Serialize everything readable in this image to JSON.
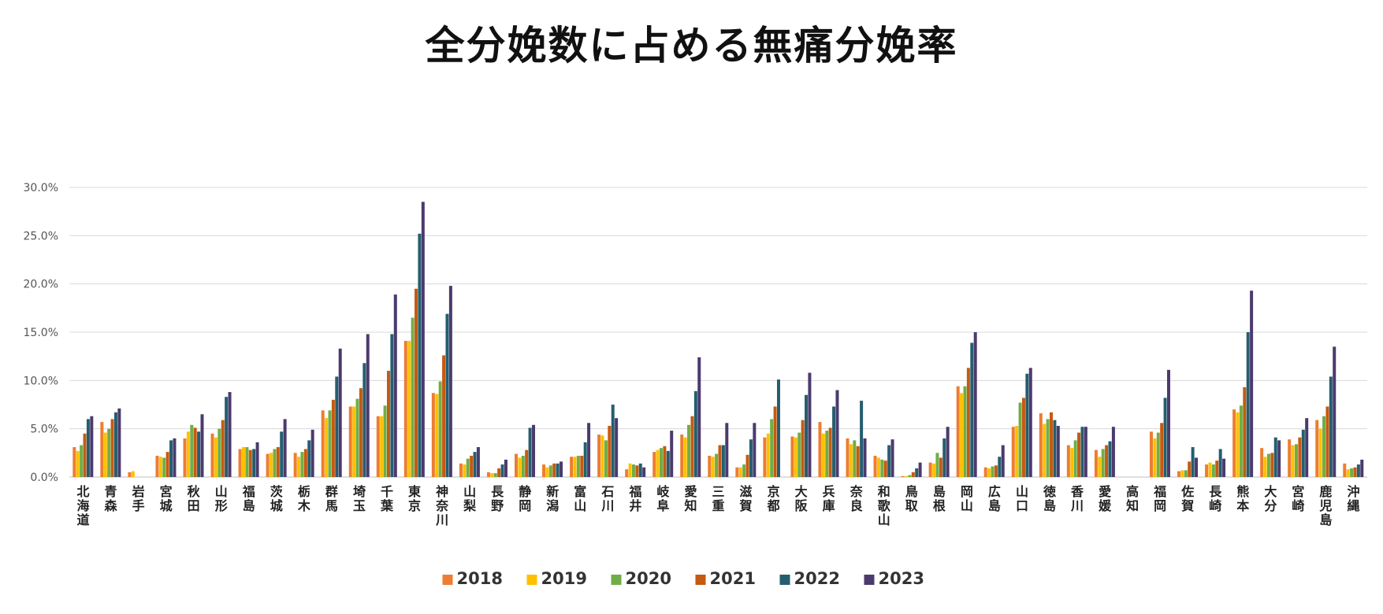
{
  "chart_data": {
    "type": "bar",
    "title": "全分娩数に占める無痛分娩率",
    "xlabel": "",
    "ylabel": "",
    "ylim": [
      0,
      30
    ],
    "yticks": [
      "0.0%",
      "5.0%",
      "10.0%",
      "15.0%",
      "20.0%",
      "25.0%",
      "30.0%"
    ],
    "grid": true,
    "legend_position": "bottom",
    "categories": [
      "北海道",
      "青森",
      "岩手",
      "宮城",
      "秋田",
      "山形",
      "福島",
      "茨城",
      "栃木",
      "群馬",
      "埼玉",
      "千葉",
      "東京",
      "神奈川",
      "山梨",
      "長野",
      "静岡",
      "新潟",
      "富山",
      "石川",
      "福井",
      "岐阜",
      "愛知",
      "三重",
      "滋賀",
      "京都",
      "大阪",
      "兵庫",
      "奈良",
      "和歌山",
      "鳥取",
      "島根",
      "岡山",
      "広島",
      "山口",
      "徳島",
      "香川",
      "愛媛",
      "高知",
      "福岡",
      "佐賀",
      "長崎",
      "熊本",
      "大分",
      "宮崎",
      "鹿児島",
      "沖縄"
    ],
    "series": [
      {
        "name": "2018",
        "color": "#ED7D31",
        "values": [
          3.1,
          5.7,
          0.5,
          2.2,
          4.0,
          4.5,
          2.9,
          2.4,
          2.5,
          6.9,
          7.3,
          6.3,
          14.1,
          8.7,
          1.4,
          0.5,
          2.4,
          1.3,
          2.1,
          4.4,
          0.8,
          2.6,
          4.4,
          2.2,
          1.0,
          4.1,
          4.2,
          5.7,
          4.0,
          2.2,
          0.1,
          1.5,
          9.4,
          1.0,
          5.2,
          6.6,
          3.3,
          2.8,
          0.0,
          4.7,
          0.6,
          1.3,
          7.0,
          3.0,
          3.9,
          5.9,
          1.4
        ]
      },
      {
        "name": "2019",
        "color": "#FFC000",
        "values": [
          2.7,
          4.6,
          0.6,
          2.1,
          4.7,
          4.1,
          3.1,
          2.5,
          2.1,
          6.1,
          7.3,
          6.3,
          14.1,
          8.6,
          1.3,
          0.4,
          2.0,
          1.0,
          2.1,
          4.3,
          1.4,
          2.8,
          4.1,
          2.1,
          1.0,
          4.5,
          4.1,
          4.5,
          3.4,
          2.0,
          0.1,
          1.4,
          8.7,
          0.9,
          5.3,
          5.5,
          3.0,
          2.1,
          0.0,
          4.0,
          0.7,
          1.5,
          6.7,
          2.1,
          3.3,
          5.0,
          0.8
        ]
      },
      {
        "name": "2020",
        "color": "#70AD47",
        "values": [
          3.3,
          5.0,
          0.0,
          2.0,
          5.4,
          5.0,
          3.1,
          2.9,
          2.6,
          6.9,
          8.1,
          7.4,
          16.5,
          9.9,
          1.9,
          0.4,
          2.2,
          1.2,
          2.2,
          3.8,
          1.3,
          3.0,
          5.4,
          2.4,
          1.3,
          6.0,
          4.6,
          4.8,
          3.8,
          1.8,
          0.2,
          2.5,
          9.4,
          1.1,
          7.7,
          6.0,
          3.8,
          2.9,
          0.0,
          4.6,
          0.7,
          1.3,
          7.4,
          2.4,
          3.4,
          6.3,
          0.9
        ]
      },
      {
        "name": "2021",
        "color": "#C55A11",
        "values": [
          4.5,
          6.0,
          0.0,
          2.6,
          5.1,
          5.9,
          2.8,
          3.1,
          2.9,
          8.0,
          9.2,
          11.0,
          19.5,
          12.6,
          2.2,
          0.9,
          2.8,
          1.4,
          2.2,
          5.3,
          1.2,
          3.2,
          6.3,
          3.3,
          2.3,
          7.3,
          5.9,
          5.1,
          3.2,
          1.7,
          0.5,
          2.0,
          11.3,
          1.2,
          8.2,
          6.7,
          4.6,
          3.3,
          0.0,
          5.6,
          1.6,
          1.7,
          9.3,
          2.5,
          4.1,
          7.3,
          1.0
        ]
      },
      {
        "name": "2022",
        "color": "#255E6F",
        "values": [
          6.0,
          6.7,
          0.0,
          3.8,
          4.7,
          8.3,
          2.9,
          4.7,
          3.8,
          10.4,
          11.8,
          14.8,
          25.2,
          16.9,
          2.6,
          1.3,
          5.1,
          1.4,
          3.6,
          7.5,
          1.4,
          2.7,
          8.9,
          3.3,
          3.9,
          10.1,
          8.5,
          7.3,
          7.9,
          3.3,
          0.9,
          4.0,
          13.9,
          2.1,
          10.7,
          5.9,
          5.2,
          3.7,
          0.0,
          8.2,
          3.1,
          2.9,
          15.0,
          4.1,
          4.9,
          10.4,
          1.3
        ]
      },
      {
        "name": "2023",
        "color": "#4B3A6E",
        "values": [
          6.3,
          7.1,
          0.0,
          4.0,
          6.5,
          8.8,
          3.6,
          6.0,
          4.9,
          13.3,
          14.8,
          18.9,
          28.5,
          19.8,
          3.1,
          1.8,
          5.4,
          1.6,
          5.6,
          6.1,
          1.0,
          4.8,
          12.4,
          5.6,
          5.6,
          0.0,
          10.8,
          9.0,
          4.0,
          3.9,
          1.5,
          5.2,
          15.0,
          3.3,
          11.3,
          5.3,
          5.2,
          5.2,
          0.0,
          11.1,
          2.0,
          1.9,
          19.3,
          3.8,
          6.1,
          13.5,
          1.8
        ]
      }
    ]
  }
}
